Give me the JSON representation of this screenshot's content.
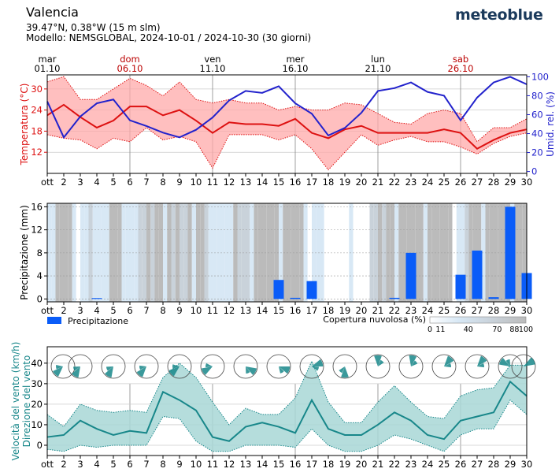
{
  "header": {
    "title": "Valencia",
    "coords": "39.47°N, 0.38°W (15 m slm)",
    "model": "Modello: NEMSGLOBAL, 2024-10-01 / 2024-10-30 (30 giorni)",
    "logo": "meteoblue"
  },
  "colors": {
    "temp": "#dd1111",
    "temp_fill": "#ffaaaa",
    "humidity": "#2222cc",
    "precip": "#0a5cf8",
    "cloud": "#bbbbbb",
    "wind": "#18878a",
    "wind_fill": "#a8d7d6",
    "weekend": "#bb0000"
  },
  "chart_data": [
    {
      "type": "line",
      "name": "temperature-humidity",
      "week_labels": [
        {
          "day": "mar",
          "date": "01.10",
          "x": 1,
          "weekend": false
        },
        {
          "day": "dom",
          "date": "06.10",
          "x": 6,
          "weekend": true
        },
        {
          "day": "ven",
          "date": "11.10",
          "x": 11,
          "weekend": false
        },
        {
          "day": "mer",
          "date": "16.10",
          "x": 16,
          "weekend": false
        },
        {
          "day": "lun",
          "date": "21.10",
          "x": 21,
          "weekend": false
        },
        {
          "day": "sab",
          "date": "26.10",
          "x": 26,
          "weekend": true
        }
      ],
      "x_tick_labels": [
        "ott",
        "2",
        "3",
        "4",
        "5",
        "6",
        "7",
        "8",
        "9",
        "10",
        "11",
        "12",
        "13",
        "14",
        "15",
        "16",
        "17",
        "18",
        "19",
        "20",
        "21",
        "22",
        "23",
        "24",
        "25",
        "26",
        "27",
        "28",
        "29",
        "30"
      ],
      "ylabel": "Temperatura (°C)",
      "ylabel_right": "Umid. rel. (%)",
      "yticks_left": [
        12,
        18,
        24,
        30
      ],
      "yticks_right": [
        0,
        20,
        40,
        60,
        80,
        100
      ],
      "ylim": [
        6,
        34
      ],
      "ylim_right": [
        -2,
        102
      ],
      "series": [
        {
          "name": "Temperatura max",
          "values": [
            32,
            33.5,
            27,
            27,
            30,
            33,
            31,
            28,
            32,
            27,
            26,
            27,
            26,
            26,
            24,
            25,
            24,
            24,
            26,
            25.5,
            23,
            20.5,
            20,
            23,
            24,
            23,
            15,
            19,
            19,
            21.5
          ]
        },
        {
          "name": "Temperatura media",
          "values": [
            22.5,
            25.5,
            22,
            19,
            21,
            25,
            25,
            22.5,
            24,
            21,
            17.5,
            20.5,
            20,
            20,
            19.5,
            21.5,
            17.5,
            16,
            18.5,
            19.5,
            17.5,
            17.5,
            17.5,
            17.5,
            18.5,
            17.5,
            13,
            15.5,
            17.5,
            18.5
          ]
        },
        {
          "name": "Temperatura min",
          "values": [
            17,
            16,
            15.5,
            13,
            16,
            15,
            19,
            15.5,
            16.5,
            15,
            7.5,
            17,
            17,
            17,
            15.5,
            17,
            13,
            7,
            12,
            17,
            14,
            15.5,
            16.5,
            15,
            15,
            13.5,
            11.5,
            14.5,
            16.5,
            17.5
          ]
        },
        {
          "name": "Umidità relativa",
          "values": [
            74,
            36,
            58,
            72,
            76,
            54,
            48,
            41,
            36,
            44,
            57,
            75,
            85,
            83,
            90,
            72,
            61,
            38,
            46,
            62,
            85,
            88,
            94,
            84,
            80,
            54,
            78,
            94,
            100,
            92
          ]
        }
      ]
    },
    {
      "type": "bar",
      "name": "precipitation-clouds",
      "ylabel": "Precipitazione (mm)",
      "yticks": [
        0,
        4,
        8,
        12,
        16
      ],
      "ylim": [
        -0.5,
        16.6
      ],
      "categories": [
        "ott",
        "2",
        "3",
        "4",
        "5",
        "6",
        "7",
        "8",
        "9",
        "10",
        "11",
        "12",
        "13",
        "14",
        "15",
        "16",
        "17",
        "18",
        "19",
        "20",
        "21",
        "22",
        "23",
        "24",
        "25",
        "26",
        "27",
        "28",
        "29",
        "30"
      ],
      "values": [
        0,
        0,
        0,
        0.15,
        0,
        0,
        0,
        0,
        0,
        0,
        0,
        0,
        0,
        0,
        3.3,
        0.2,
        3.1,
        0,
        0,
        0,
        0,
        0.2,
        8,
        0,
        0,
        4.2,
        8.4,
        0.3,
        16,
        4.5
      ],
      "cloud_cover": [
        60,
        88,
        40,
        40,
        88,
        60,
        75,
        88,
        75,
        88,
        40,
        60,
        75,
        88,
        88,
        88,
        40,
        11,
        11,
        11,
        75,
        88,
        88,
        88,
        88,
        40,
        88,
        88,
        88,
        88
      ],
      "legend_precip": "Precipitazione",
      "legend_cloud": "Copertura nuvolosa (%)",
      "cloud_scale": [
        0,
        11,
        40,
        70,
        88,
        100
      ]
    },
    {
      "type": "area",
      "name": "wind",
      "ylabel": "Velocità del vento (km/h)",
      "ylabel2": "Direzione del vento",
      "yticks": [
        0,
        10,
        20,
        30,
        40
      ],
      "ylim": [
        -5,
        48
      ],
      "series": [
        {
          "name": "Raffiche max",
          "values": [
            15,
            9,
            20,
            17,
            16,
            17,
            16,
            33,
            40,
            33,
            21,
            10,
            18,
            15,
            15,
            23,
            41,
            21,
            11,
            11,
            21,
            29,
            21,
            14,
            13,
            24,
            27,
            28,
            39,
            39
          ]
        },
        {
          "name": "Velocità media",
          "values": [
            4,
            5,
            12,
            8,
            5,
            7,
            6,
            26,
            22,
            17,
            4,
            2,
            9,
            11,
            9,
            6,
            22,
            8,
            5,
            5,
            10,
            16,
            12,
            5,
            3,
            12,
            14,
            16,
            31,
            24
          ]
        },
        {
          "name": "Velocità min",
          "values": [
            -2,
            -3,
            0,
            -1,
            0,
            0,
            0,
            14,
            13,
            2,
            -3,
            -3,
            0,
            0,
            0,
            -1,
            8,
            0,
            -3,
            -3,
            0,
            5,
            3,
            0,
            -3,
            5,
            8,
            8,
            22,
            15
          ]
        }
      ],
      "wind_dir_deg": [
        225,
        200,
        210,
        200,
        210,
        215,
        220,
        225,
        230,
        205,
        240,
        160,
        120,
        100,
        110,
        80,
        70,
        170,
        180,
        160,
        0,
        25,
        10,
        40,
        40,
        350,
        40,
        280,
        300,
        60
      ]
    }
  ]
}
